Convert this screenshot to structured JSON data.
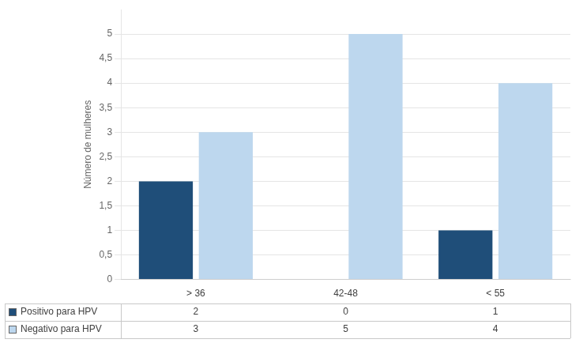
{
  "chart_data": {
    "type": "bar",
    "categories": [
      "> 36",
      "42-48",
      "< 55"
    ],
    "series": [
      {
        "name": "Positivo para HPV",
        "color": "#1F4E79",
        "values": [
          2,
          0,
          1
        ]
      },
      {
        "name": "Negativo para HPV",
        "color": "#BDD7EE",
        "values": [
          3,
          5,
          4
        ]
      }
    ],
    "ylabel": "Número de mulheres",
    "ylim": [
      0,
      5.5
    ],
    "yticks": [
      0,
      {
        "value": 0.5,
        "label": "0,5"
      },
      1,
      {
        "value": 1.5,
        "label": "1,5"
      },
      2,
      {
        "value": 2.5,
        "label": "2,5"
      },
      3,
      {
        "value": 3.5,
        "label": "3,5"
      },
      4,
      {
        "value": 4.5,
        "label": "4,5"
      },
      5
    ],
    "grid": true,
    "legend": "bottom"
  }
}
